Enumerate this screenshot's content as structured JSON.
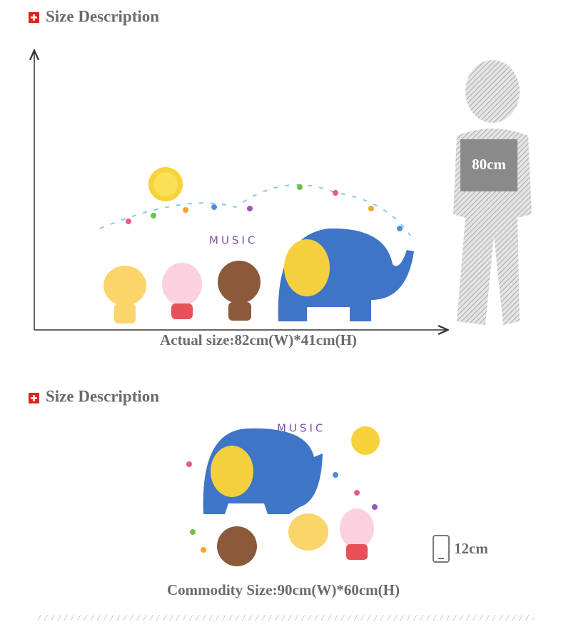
{
  "sections": [
    {
      "title": "Size Description",
      "art_text": "MUSIC",
      "height_label": "80cm",
      "caption": "Actual size:82cm(W)*41cm(H)"
    },
    {
      "title": "Size Description",
      "art_text": "MUSIC",
      "phone_label": "12cm",
      "caption": "Commodity Size:90cm(W)*60cm(H)"
    }
  ]
}
